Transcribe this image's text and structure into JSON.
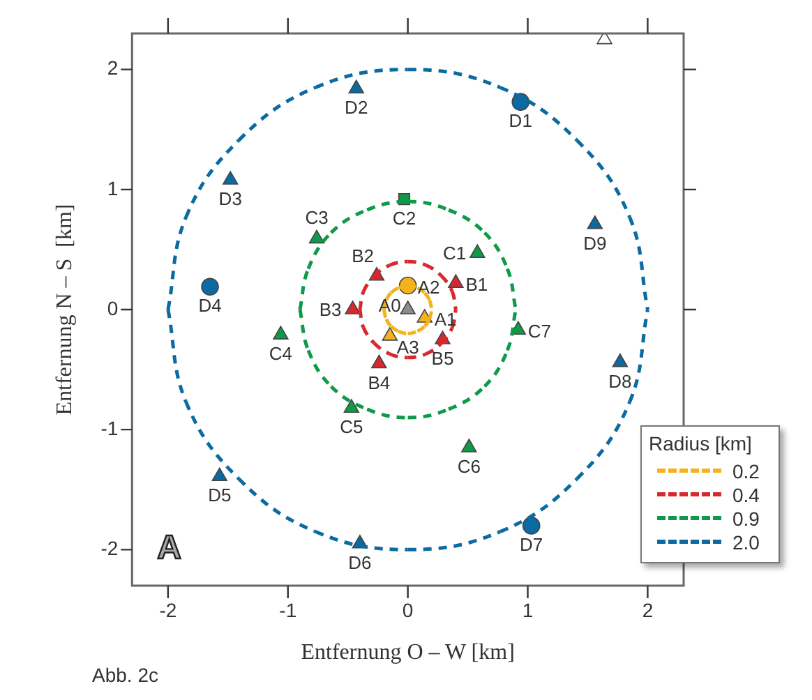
{
  "chart_data": {
    "type": "scatter",
    "xlabel": "Entfernung O – W [km]",
    "ylabel": "Entfernung N – S  [km]",
    "legend_title": "Radius [km]",
    "legend": "bottom right",
    "grid": false,
    "xlim": [
      -2.3,
      2.3
    ],
    "ylim": [
      -2.3,
      2.3
    ],
    "xticks": [
      -2,
      -1,
      0,
      1,
      2
    ],
    "yticks": [
      -2,
      -1,
      0,
      1,
      2
    ],
    "annotations": [
      "A",
      "Abb. 2c"
    ],
    "series": [
      {
        "name": "0.2",
        "type": "line",
        "color": "#f5b31b",
        "line_style": "dashed",
        "marker": "none",
        "x": [
          -0.2,
          -0.18,
          -0.14,
          -0.08,
          0,
          0.08,
          0.14,
          0.18,
          0.2
        ],
        "values": [
          0,
          0.08,
          0.14,
          0.18,
          0.2,
          0.18,
          0.14,
          0.08,
          0
        ]
      },
      {
        "type": "line",
        "color": "#f5b31b",
        "line_style": "dashed",
        "marker": "none",
        "x": [
          -0.2,
          -0.18,
          -0.14,
          -0.08,
          0,
          0.08,
          0.14,
          0.18,
          0.2
        ],
        "values": [
          0,
          -0.08,
          -0.14,
          -0.18,
          -0.2,
          -0.18,
          -0.14,
          -0.08,
          0
        ]
      },
      {
        "name": "0.4",
        "type": "line",
        "color": "#d7282f",
        "line_style": "dashed",
        "marker": "none",
        "x": [
          -0.4,
          -0.37,
          -0.28,
          -0.15,
          0,
          0.15,
          0.28,
          0.37,
          0.4
        ],
        "values": [
          0,
          0.15,
          0.28,
          0.37,
          0.4,
          0.37,
          0.28,
          0.15,
          0
        ]
      },
      {
        "type": "line",
        "color": "#d7282f",
        "line_style": "dashed",
        "marker": "none",
        "x": [
          -0.4,
          -0.37,
          -0.28,
          -0.15,
          0,
          0.15,
          0.28,
          0.37,
          0.4
        ],
        "values": [
          0,
          -0.15,
          -0.28,
          -0.37,
          -0.4,
          -0.37,
          -0.28,
          -0.15,
          0
        ]
      },
      {
        "name": "0.9",
        "type": "line",
        "color": "#0e9a48",
        "line_style": "dashed",
        "marker": "none",
        "x": [
          -0.9,
          -0.83,
          -0.64,
          -0.34,
          0,
          0.34,
          0.64,
          0.83,
          0.9
        ],
        "values": [
          0,
          0.34,
          0.64,
          0.83,
          0.9,
          0.83,
          0.64,
          0.34,
          0
        ]
      },
      {
        "type": "line",
        "color": "#0e9a48",
        "line_style": "dashed",
        "marker": "none",
        "x": [
          -0.9,
          -0.83,
          -0.64,
          -0.34,
          0,
          0.34,
          0.64,
          0.83,
          0.9
        ],
        "values": [
          0,
          -0.34,
          -0.64,
          -0.83,
          -0.9,
          -0.83,
          -0.64,
          -0.34,
          0
        ]
      },
      {
        "name": "2.0",
        "type": "line",
        "color": "#0a6aa1",
        "line_style": "dashed",
        "marker": "none",
        "x": [
          -2,
          -1.85,
          -1.41,
          -0.77,
          0,
          0.77,
          1.41,
          1.85,
          2
        ],
        "values": [
          0,
          0.77,
          1.41,
          1.85,
          2,
          1.85,
          1.41,
          0.77,
          0
        ]
      },
      {
        "type": "line",
        "color": "#0a6aa1",
        "line_style": "dashed",
        "marker": "none",
        "x": [
          -2,
          -1.85,
          -1.41,
          -0.77,
          0,
          0.77,
          1.41,
          1.85,
          2
        ],
        "values": [
          0,
          -0.77,
          -1.41,
          -1.85,
          -2,
          -1.85,
          -1.41,
          -0.77,
          0
        ]
      },
      {
        "color": "#8c8c8c",
        "marker": "triangle",
        "x": [
          0
        ],
        "values": [
          0
        ],
        "value_labels": [
          "A0"
        ]
      },
      {
        "color": "#f5b31b",
        "marker": "triangle",
        "x": [
          0.14,
          -0.15
        ],
        "values": [
          -0.07,
          -0.22
        ],
        "value_labels": [
          "A1",
          "A3"
        ]
      },
      {
        "color": "#f5b31b",
        "marker": "circle",
        "x": [
          0
        ],
        "values": [
          0.2
        ],
        "value_labels": [
          "A2"
        ]
      },
      {
        "color": "#d7282f",
        "marker": "triangle",
        "x": [
          0.4,
          -0.26,
          -0.46,
          -0.24,
          0.29
        ],
        "values": [
          0.22,
          0.28,
          0,
          -0.45,
          -0.25
        ],
        "value_labels": [
          "B1",
          "B2",
          "B3",
          "B4",
          "B5"
        ]
      },
      {
        "color": "#0e9a48",
        "marker": "triangle",
        "x": [
          0.58,
          -0.76,
          -1.06,
          -0.47,
          0.51,
          0.92
        ],
        "values": [
          0.47,
          0.59,
          -0.21,
          -0.82,
          -1.15,
          -0.17
        ],
        "value_labels": [
          "C1",
          "C3",
          "C4",
          "C5",
          "C6",
          "C7"
        ]
      },
      {
        "color": "#0e9a48",
        "marker": "square",
        "x": [
          -0.03
        ],
        "values": [
          0.92
        ],
        "value_labels": [
          "C2"
        ]
      },
      {
        "color": "#0a6aa1",
        "marker": "triangle",
        "x": [
          -0.43,
          -1.48,
          -1.57,
          -0.4,
          1.77,
          1.56
        ],
        "values": [
          1.84,
          1.08,
          -1.39,
          -1.95,
          -0.44,
          0.71
        ],
        "value_labels": [
          "D2",
          "D3",
          "D5",
          "D6",
          "D8",
          "D9"
        ]
      },
      {
        "color": "#0a6aa1",
        "marker": "circle",
        "x": [
          0.94,
          -1.65,
          1.03
        ],
        "values": [
          1.73,
          0.19,
          -1.8
        ],
        "value_labels": [
          "D1",
          "D4",
          "D7"
        ]
      },
      {
        "color": "#ffffff",
        "marker": "triangle",
        "x": [
          1.64
        ],
        "values": [
          2.25
        ]
      }
    ]
  }
}
